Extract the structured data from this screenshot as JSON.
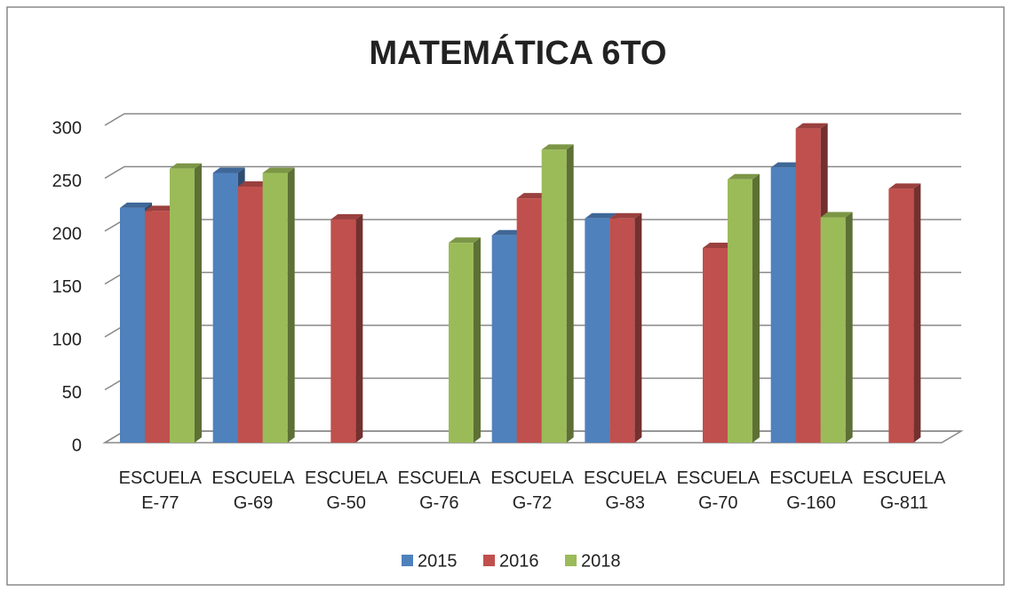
{
  "chart_data": {
    "type": "bar3d",
    "title": "MATEMÁTICA 6TO",
    "categories": [
      "ESCUELA E-77",
      "ESCUELA G-69",
      "ESCUELA G-50",
      "ESCUELA G-76",
      "ESCUELA G-72",
      "ESCUELA G-83",
      "ESCUELA G-70",
      "ESCUELA G-160",
      "ESCUELA G-811"
    ],
    "series": [
      {
        "name": "2015",
        "color": "#4f81bd",
        "values": [
          222,
          255,
          null,
          null,
          196,
          212,
          null,
          260,
          null
        ]
      },
      {
        "name": "2016",
        "color": "#c0504d",
        "values": [
          219,
          242,
          211,
          null,
          231,
          212,
          184,
          297,
          240
        ]
      },
      {
        "name": "2018",
        "color": "#9bbb59",
        "values": [
          259,
          255,
          null,
          189,
          277,
          null,
          249,
          213,
          null
        ]
      }
    ],
    "ylim": [
      0,
      300
    ],
    "yticks": [
      0,
      50,
      100,
      150,
      200,
      250,
      300
    ],
    "grid": true,
    "legend": "bottom"
  }
}
